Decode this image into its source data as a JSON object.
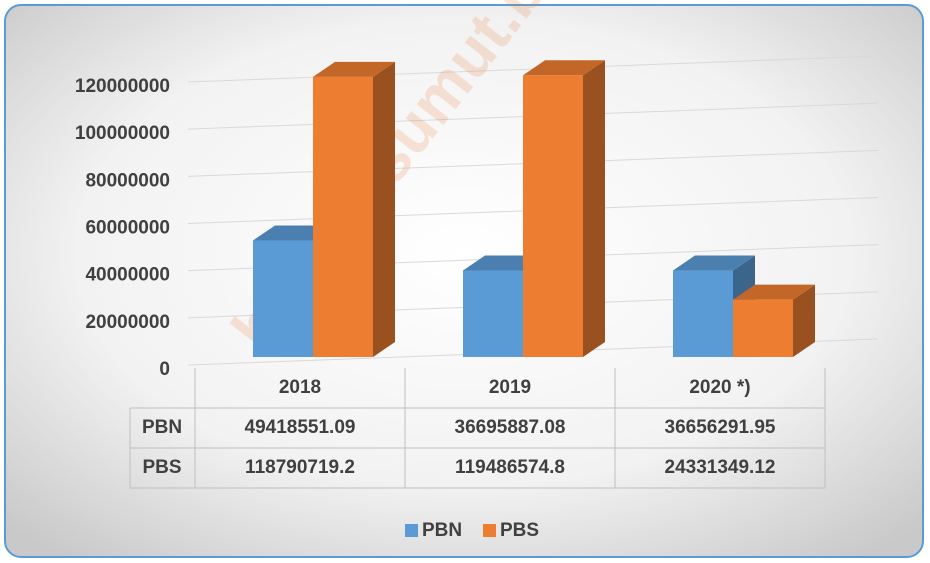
{
  "chart_data": {
    "type": "bar3d",
    "categories": [
      "2018",
      "2019",
      "2020 *)"
    ],
    "series": [
      {
        "name": "PBN",
        "color": "#5b9bd5",
        "values": [
          49418551.09,
          36695887.08,
          36656291.95
        ]
      },
      {
        "name": "PBS",
        "color": "#ed7d31",
        "values": [
          118790719.2,
          119486574.8,
          24331349.12
        ]
      }
    ],
    "ylim": [
      0,
      120000000
    ],
    "yticks": [
      0,
      20000000,
      40000000,
      60000000,
      80000000,
      100000000,
      120000000
    ],
    "grid": true,
    "legend": "bottom",
    "watermark": "https://sumut.bps"
  }
}
